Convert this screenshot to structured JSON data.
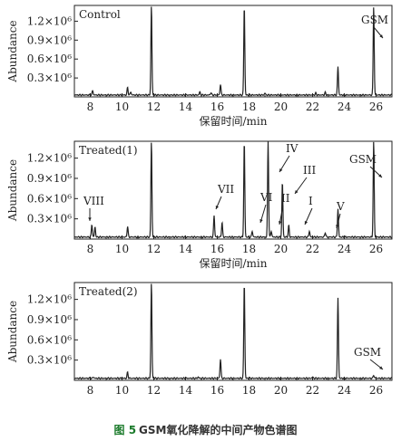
{
  "caption": {
    "label": "图 5",
    "text": "GSM氧化降解的中间产物色谱图"
  },
  "colors": {
    "line": "#222222",
    "caption_label": "#1a7a2a"
  },
  "chart_data": [
    {
      "type": "line",
      "title": "Control",
      "xlabel": "保留时间/min",
      "ylabel": "Abundance",
      "xlim": [
        7,
        27
      ],
      "ylim": [
        0,
        1.45
      ],
      "x_ticks": [
        8,
        10,
        12,
        14,
        16,
        18,
        20,
        22,
        24,
        26
      ],
      "y_ticks": [
        0.3,
        0.6,
        0.9,
        1.2
      ],
      "y_tick_labels": [
        "0.3×10⁶",
        "0.6×10⁶",
        "0.9×10⁶",
        "1.2×10⁶"
      ],
      "baseline": 0.03,
      "peaks": [
        {
          "x": 8.15,
          "y": 0.1
        },
        {
          "x": 10.35,
          "y": 0.15
        },
        {
          "x": 10.55,
          "y": 0.08
        },
        {
          "x": 11.85,
          "y": 1.45
        },
        {
          "x": 14.9,
          "y": 0.08
        },
        {
          "x": 15.6,
          "y": 0.07
        },
        {
          "x": 16.2,
          "y": 0.2
        },
        {
          "x": 17.7,
          "y": 1.45
        },
        {
          "x": 19.0,
          "y": 0.06
        },
        {
          "x": 22.2,
          "y": 0.06
        },
        {
          "x": 22.8,
          "y": 0.07
        },
        {
          "x": 23.6,
          "y": 0.48
        },
        {
          "x": 25.85,
          "y": 1.45
        }
      ],
      "annotations": [
        {
          "label": "GSM",
          "x": 25.85,
          "y": 1.1
        }
      ]
    },
    {
      "type": "line",
      "title": "Treated(1)",
      "xlabel": "保留时间/min",
      "ylabel": "Abundance",
      "xlim": [
        7,
        27
      ],
      "ylim": [
        0,
        1.45
      ],
      "x_ticks": [
        8,
        10,
        12,
        14,
        16,
        18,
        20,
        22,
        24,
        26
      ],
      "y_ticks": [
        0.3,
        0.6,
        0.9,
        1.2
      ],
      "y_tick_labels": [
        "0.3×10⁶",
        "0.6×10⁶",
        "0.9×10⁶",
        "1.2×10⁶"
      ],
      "baseline": 0.03,
      "peaks": [
        {
          "x": 8.1,
          "y": 0.22
        },
        {
          "x": 8.3,
          "y": 0.18
        },
        {
          "x": 10.35,
          "y": 0.19
        },
        {
          "x": 11.85,
          "y": 1.45
        },
        {
          "x": 15.8,
          "y": 0.35
        },
        {
          "x": 16.3,
          "y": 0.25
        },
        {
          "x": 17.7,
          "y": 1.45
        },
        {
          "x": 18.2,
          "y": 0.12
        },
        {
          "x": 19.2,
          "y": 1.45
        },
        {
          "x": 19.4,
          "y": 0.12
        },
        {
          "x": 20.1,
          "y": 0.85
        },
        {
          "x": 20.5,
          "y": 0.2
        },
        {
          "x": 21.8,
          "y": 0.12
        },
        {
          "x": 22.8,
          "y": 0.1
        },
        {
          "x": 23.6,
          "y": 0.45
        },
        {
          "x": 25.85,
          "y": 1.45
        }
      ],
      "annotations": [
        {
          "label": "VIII",
          "x": 8.2
        },
        {
          "label": "VII",
          "x": 15.8
        },
        {
          "label": "VI",
          "x": 18.2
        },
        {
          "label": "IV",
          "x": 19.2
        },
        {
          "label": "III",
          "x": 20.1
        },
        {
          "label": "II",
          "x": 19.4
        },
        {
          "label": "I",
          "x": 20.5
        },
        {
          "label": "V",
          "x": 22.8
        },
        {
          "label": "GSM",
          "x": 25.85
        }
      ]
    },
    {
      "type": "line",
      "title": "Treated(2)",
      "xlabel": "",
      "ylabel": "Abundance",
      "xlim": [
        7,
        27
      ],
      "ylim": [
        0,
        1.45
      ],
      "x_ticks": [
        8,
        10,
        12,
        14,
        16,
        18,
        20,
        22,
        24,
        26
      ],
      "y_ticks": [
        0.3,
        0.6,
        0.9,
        1.2
      ],
      "y_tick_labels": [
        "0.3×10⁶",
        "0.6×10⁶",
        "0.9×10⁶",
        "1.2×10⁶"
      ],
      "baseline": 0.03,
      "peaks": [
        {
          "x": 8.2,
          "y": 0.05
        },
        {
          "x": 10.35,
          "y": 0.12
        },
        {
          "x": 11.85,
          "y": 1.45
        },
        {
          "x": 14.8,
          "y": 0.05
        },
        {
          "x": 16.2,
          "y": 0.32
        },
        {
          "x": 17.7,
          "y": 1.45
        },
        {
          "x": 22.0,
          "y": 0.05
        },
        {
          "x": 23.6,
          "y": 1.22
        },
        {
          "x": 25.85,
          "y": 0.08
        }
      ],
      "annotations": [
        {
          "label": "GSM",
          "x": 25.85
        }
      ]
    }
  ]
}
